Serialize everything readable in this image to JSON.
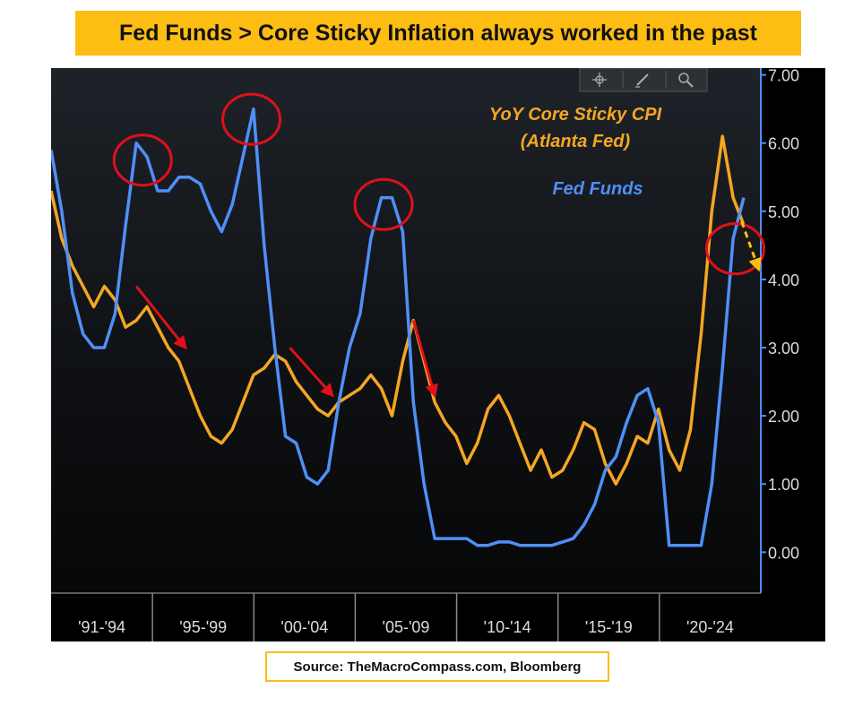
{
  "title": "Fed Funds > Core Sticky Inflation always worked in the past",
  "source": "Source: TheMacroCompass.com, Bloomberg",
  "toolbar": {
    "icons": [
      "crosshair-icon",
      "pencil-icon",
      "magnifier-icon"
    ]
  },
  "colors": {
    "background": "#000000",
    "fed_funds": "#4f8ff7",
    "sticky_cpi": "#f5a623",
    "title_banner": "#fdbd13",
    "annotation_circle": "#e0101a",
    "annotation_arrow": "#e0101a",
    "forecast_arrow": "#fdbd13"
  },
  "chart_data": {
    "type": "line",
    "ylim": [
      -0.6,
      7.1
    ],
    "xlim": [
      1991.0,
      2024.3
    ],
    "yticks": [
      0,
      1,
      2,
      3,
      4,
      5,
      6,
      7
    ],
    "ytick_labels": [
      "0.00",
      "1.00",
      "2.00",
      "3.00",
      "4.00",
      "5.00",
      "6.00",
      "7.00"
    ],
    "xtick_labels": [
      "'91-'94",
      "'95-'99",
      "'00-'04",
      "'05-'09",
      "'10-'14",
      "'15-'19",
      "'20-'24"
    ],
    "legend_placement": "top-right (in-plot text labels)",
    "series": [
      {
        "name": "YoY Core Sticky CPI (Atlanta Fed)",
        "name_lines": [
          "YoY Core Sticky CPI",
          "(Atlanta Fed)"
        ],
        "color": "#f5a623",
        "x": [
          1991.0,
          1991.5,
          1992.0,
          1992.5,
          1993.0,
          1993.5,
          1994.0,
          1994.5,
          1995.0,
          1995.5,
          1996.0,
          1996.5,
          1997.0,
          1997.5,
          1998.0,
          1998.5,
          1999.0,
          1999.5,
          2000.0,
          2000.5,
          2001.0,
          2001.5,
          2002.0,
          2002.5,
          2003.0,
          2003.5,
          2004.0,
          2004.5,
          2005.0,
          2005.5,
          2006.0,
          2006.5,
          2007.0,
          2007.5,
          2008.0,
          2008.5,
          2009.0,
          2009.5,
          2010.0,
          2010.5,
          2011.0,
          2011.5,
          2012.0,
          2012.5,
          2013.0,
          2013.5,
          2014.0,
          2014.5,
          2015.0,
          2015.5,
          2016.0,
          2016.5,
          2017.0,
          2017.5,
          2018.0,
          2018.5,
          2019.0,
          2019.5,
          2020.0,
          2020.5,
          2021.0,
          2021.5,
          2022.0,
          2022.5,
          2023.0,
          2023.5
        ],
        "values": [
          5.3,
          4.6,
          4.2,
          3.9,
          3.6,
          3.9,
          3.7,
          3.3,
          3.4,
          3.6,
          3.3,
          3.0,
          2.8,
          2.4,
          2.0,
          1.7,
          1.6,
          1.8,
          2.2,
          2.6,
          2.7,
          2.9,
          2.8,
          2.5,
          2.3,
          2.1,
          2.0,
          2.2,
          2.3,
          2.4,
          2.6,
          2.4,
          2.0,
          2.8,
          3.4,
          2.8,
          2.2,
          1.9,
          1.7,
          1.3,
          1.6,
          2.1,
          2.3,
          2.0,
          1.6,
          1.2,
          1.5,
          1.1,
          1.2,
          1.5,
          1.9,
          1.8,
          1.3,
          1.0,
          1.3,
          1.7,
          1.6,
          2.1,
          1.5,
          1.2,
          1.8,
          3.2,
          5.0,
          6.1,
          5.2,
          4.8
        ]
      },
      {
        "name": "Fed Funds",
        "color": "#4f8ff7",
        "x": [
          1991.0,
          1991.5,
          1992.0,
          1992.5,
          1993.0,
          1993.5,
          1994.0,
          1994.5,
          1995.0,
          1995.5,
          1996.0,
          1996.5,
          1997.0,
          1997.5,
          1998.0,
          1998.5,
          1999.0,
          1999.5,
          2000.0,
          2000.5,
          2001.0,
          2001.5,
          2002.0,
          2002.5,
          2003.0,
          2003.5,
          2004.0,
          2004.5,
          2005.0,
          2005.5,
          2006.0,
          2006.5,
          2007.0,
          2007.5,
          2008.0,
          2008.5,
          2009.0,
          2009.5,
          2010.0,
          2010.5,
          2011.0,
          2011.5,
          2012.0,
          2012.5,
          2013.0,
          2013.5,
          2014.0,
          2014.5,
          2015.0,
          2015.5,
          2016.0,
          2016.5,
          2017.0,
          2017.5,
          2018.0,
          2018.5,
          2019.0,
          2019.5,
          2020.0,
          2020.5,
          2021.0,
          2021.5,
          2022.0,
          2022.5,
          2023.0,
          2023.5
        ],
        "values": [
          5.9,
          5.0,
          3.8,
          3.2,
          3.0,
          3.0,
          3.5,
          4.8,
          6.0,
          5.8,
          5.3,
          5.3,
          5.5,
          5.5,
          5.4,
          5.0,
          4.7,
          5.1,
          5.8,
          6.5,
          4.5,
          3.0,
          1.7,
          1.6,
          1.1,
          1.0,
          1.2,
          2.2,
          3.0,
          3.5,
          4.6,
          5.2,
          5.2,
          4.7,
          2.2,
          1.0,
          0.2,
          0.2,
          0.2,
          0.2,
          0.1,
          0.1,
          0.15,
          0.15,
          0.1,
          0.1,
          0.1,
          0.1,
          0.15,
          0.2,
          0.4,
          0.7,
          1.2,
          1.4,
          1.9,
          2.3,
          2.4,
          1.9,
          0.1,
          0.1,
          0.1,
          0.1,
          1.0,
          2.7,
          4.6,
          5.2
        ]
      }
    ],
    "annotations": [
      {
        "kind": "circle",
        "x": 1995.3,
        "y": 5.75
      },
      {
        "kind": "circle",
        "x": 2000.4,
        "y": 6.35
      },
      {
        "kind": "circle",
        "x": 2006.6,
        "y": 5.1
      },
      {
        "kind": "circle",
        "x": 2023.1,
        "y": 4.45
      },
      {
        "kind": "arrow",
        "from": [
          1995.0,
          3.9
        ],
        "to": [
          1997.3,
          3.0
        ]
      },
      {
        "kind": "arrow",
        "from": [
          2002.2,
          3.0
        ],
        "to": [
          2004.2,
          2.3
        ]
      },
      {
        "kind": "arrow",
        "from": [
          2008.0,
          3.4
        ],
        "to": [
          2009.0,
          2.3
        ]
      },
      {
        "kind": "arrow-dashed",
        "from": [
          2023.4,
          4.85
        ],
        "to": [
          2024.2,
          4.15
        ]
      }
    ]
  }
}
